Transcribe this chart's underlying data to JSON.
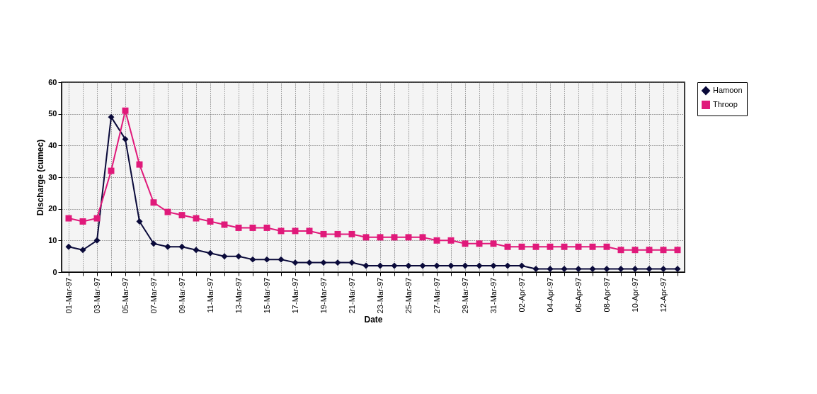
{
  "chart_data": {
    "type": "line",
    "xlabel": "Date",
    "ylabel": "Discharge (cumec)",
    "categories": [
      "01-Mar-97",
      null,
      "03-Mar-97",
      null,
      "05-Mar-97",
      null,
      "07-Mar-97",
      null,
      "09-Mar-97",
      null,
      "11-Mar-97",
      null,
      "13-Mar-97",
      null,
      "15-Mar-97",
      null,
      "17-Mar-97",
      null,
      "19-Mar-97",
      null,
      "21-Mar-97",
      null,
      "23-Mar-97",
      null,
      "25-Mar-97",
      null,
      "27-Mar-97",
      null,
      "29-Mar-97",
      null,
      "31-Mar-97",
      null,
      "02-Apr-97",
      null,
      "04-Apr-97",
      null,
      "06-Apr-97",
      null,
      "08-Apr-97",
      null,
      "10-Apr-97",
      null,
      "12-Apr-97",
      null
    ],
    "series": [
      {
        "name": "Hamoon",
        "color": "#0a0a3a",
        "marker": "diamond",
        "values": [
          8,
          7,
          10,
          49,
          42,
          16,
          9,
          8,
          8,
          7,
          6,
          5,
          5,
          4,
          4,
          4,
          3,
          3,
          3,
          3,
          3,
          2,
          2,
          2,
          2,
          2,
          2,
          2,
          2,
          2,
          2,
          2,
          2,
          1,
          1,
          1,
          1,
          1,
          1,
          1,
          1,
          1,
          1,
          1
        ]
      },
      {
        "name": "Throop",
        "color": "#e0197a",
        "marker": "square",
        "values": [
          17,
          16,
          17,
          32,
          51,
          34,
          22,
          19,
          18,
          17,
          16,
          15,
          14,
          14,
          14,
          13,
          13,
          13,
          12,
          12,
          12,
          11,
          11,
          11,
          11,
          11,
          10,
          10,
          9,
          9,
          9,
          8,
          8,
          8,
          8,
          8,
          8,
          8,
          8,
          7,
          7,
          7,
          7,
          7
        ]
      }
    ],
    "ylim": [
      0,
      60
    ],
    "yticks": [
      0,
      10,
      20,
      30,
      40,
      50,
      60
    ],
    "grid": true,
    "legend": "right",
    "line_style": "solid"
  }
}
